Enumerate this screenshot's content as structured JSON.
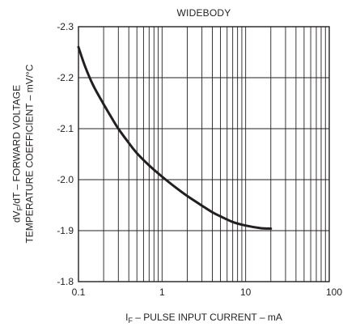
{
  "chart_data": {
    "type": "line",
    "title": "WIDEBODY",
    "xlabel_main": "I",
    "xlabel_sub": "F",
    "xlabel_rest": " – PULSE INPUT CURRENT – mA",
    "ylabel_line1_a": "dV",
    "ylabel_line1_sub": "F",
    "ylabel_line1_b": "/dT – FORWARD VOLTAGE",
    "ylabel_line2": "TEMPERATURE COEFFICIENT – mV/°C",
    "x_scale": "log",
    "xlim": [
      0.1,
      100
    ],
    "ylim": [
      -1.8,
      -2.3
    ],
    "x_ticks": [
      0.1,
      1,
      10,
      100
    ],
    "x_tick_labels": [
      "0.1",
      "1",
      "10",
      "100"
    ],
    "y_ticks": [
      -2.3,
      -2.2,
      -2.1,
      -2.0,
      -1.9,
      -1.8
    ],
    "y_tick_labels": [
      "-2.3",
      "-2.2",
      "-2.1",
      "-2.0",
      "-1.9",
      "-1.8"
    ],
    "grid": true,
    "series": [
      {
        "x": [
          0.1,
          0.12,
          0.15,
          0.2,
          0.25,
          0.3,
          0.4,
          0.5,
          0.7,
          1,
          1.5,
          2,
          3,
          4,
          5,
          7,
          10,
          15,
          20
        ],
        "y": [
          -2.26,
          -2.222,
          -2.185,
          -2.148,
          -2.121,
          -2.1,
          -2.072,
          -2.052,
          -2.028,
          -2.006,
          -1.983,
          -1.968,
          -1.949,
          -1.936,
          -1.928,
          -1.917,
          -1.91,
          -1.905,
          -1.904
        ]
      }
    ]
  }
}
